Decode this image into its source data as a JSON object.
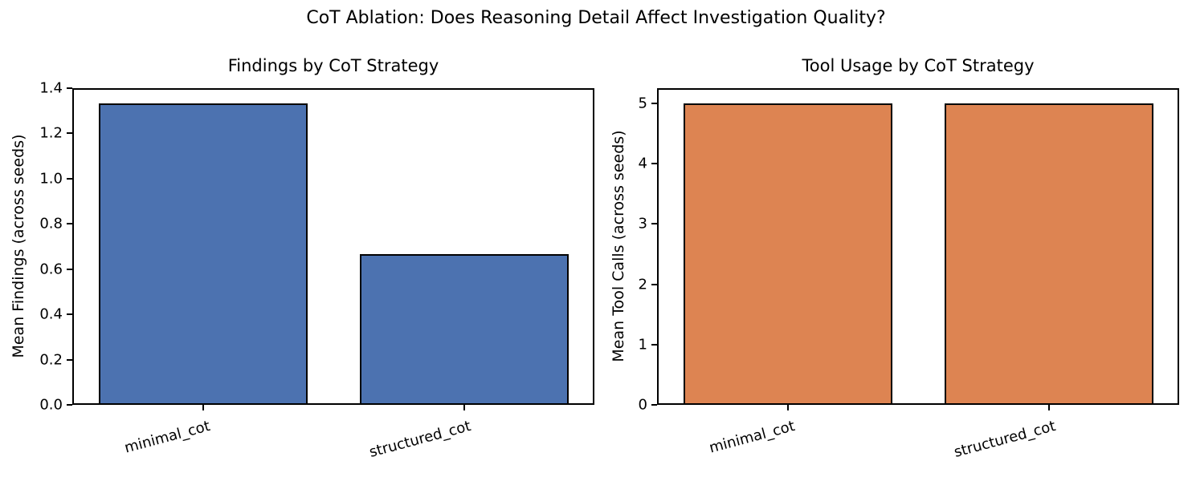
{
  "figure": {
    "suptitle": "CoT Ablation: Does Reasoning Detail Affect Investigation Quality?",
    "background": "#ffffff",
    "text_color": "#000000"
  },
  "chart_data": [
    {
      "type": "bar",
      "title": "Findings by CoT Strategy",
      "ylabel": "Mean Findings (across seeds)",
      "xlabel": "",
      "categories": [
        "minimal_cot",
        "structured_cot"
      ],
      "values": [
        1.333,
        0.667
      ],
      "bar_color": "#4C72B0",
      "bar_edge_color": "#000000",
      "ylim": [
        0,
        1.4
      ],
      "ytick_values": [
        0.0,
        0.2,
        0.4,
        0.6,
        0.8,
        1.0,
        1.2,
        1.4
      ],
      "ytick_labels": [
        "0.0",
        "0.2",
        "0.4",
        "0.6",
        "0.8",
        "1.0",
        "1.2",
        "1.4"
      ],
      "xtick_rotation_deg": 15,
      "grid": false,
      "legend": null
    },
    {
      "type": "bar",
      "title": "Tool Usage by CoT Strategy",
      "ylabel": "Mean Tool Calls (across seeds)",
      "xlabel": "",
      "categories": [
        "minimal_cot",
        "structured_cot"
      ],
      "values": [
        5.0,
        5.0
      ],
      "bar_color": "#DD8452",
      "bar_edge_color": "#000000",
      "ylim": [
        0,
        5.25
      ],
      "ytick_values": [
        0,
        1,
        2,
        3,
        4,
        5
      ],
      "ytick_labels": [
        "0",
        "1",
        "2",
        "3",
        "4",
        "5"
      ],
      "xtick_rotation_deg": 15,
      "grid": false,
      "legend": null
    }
  ]
}
